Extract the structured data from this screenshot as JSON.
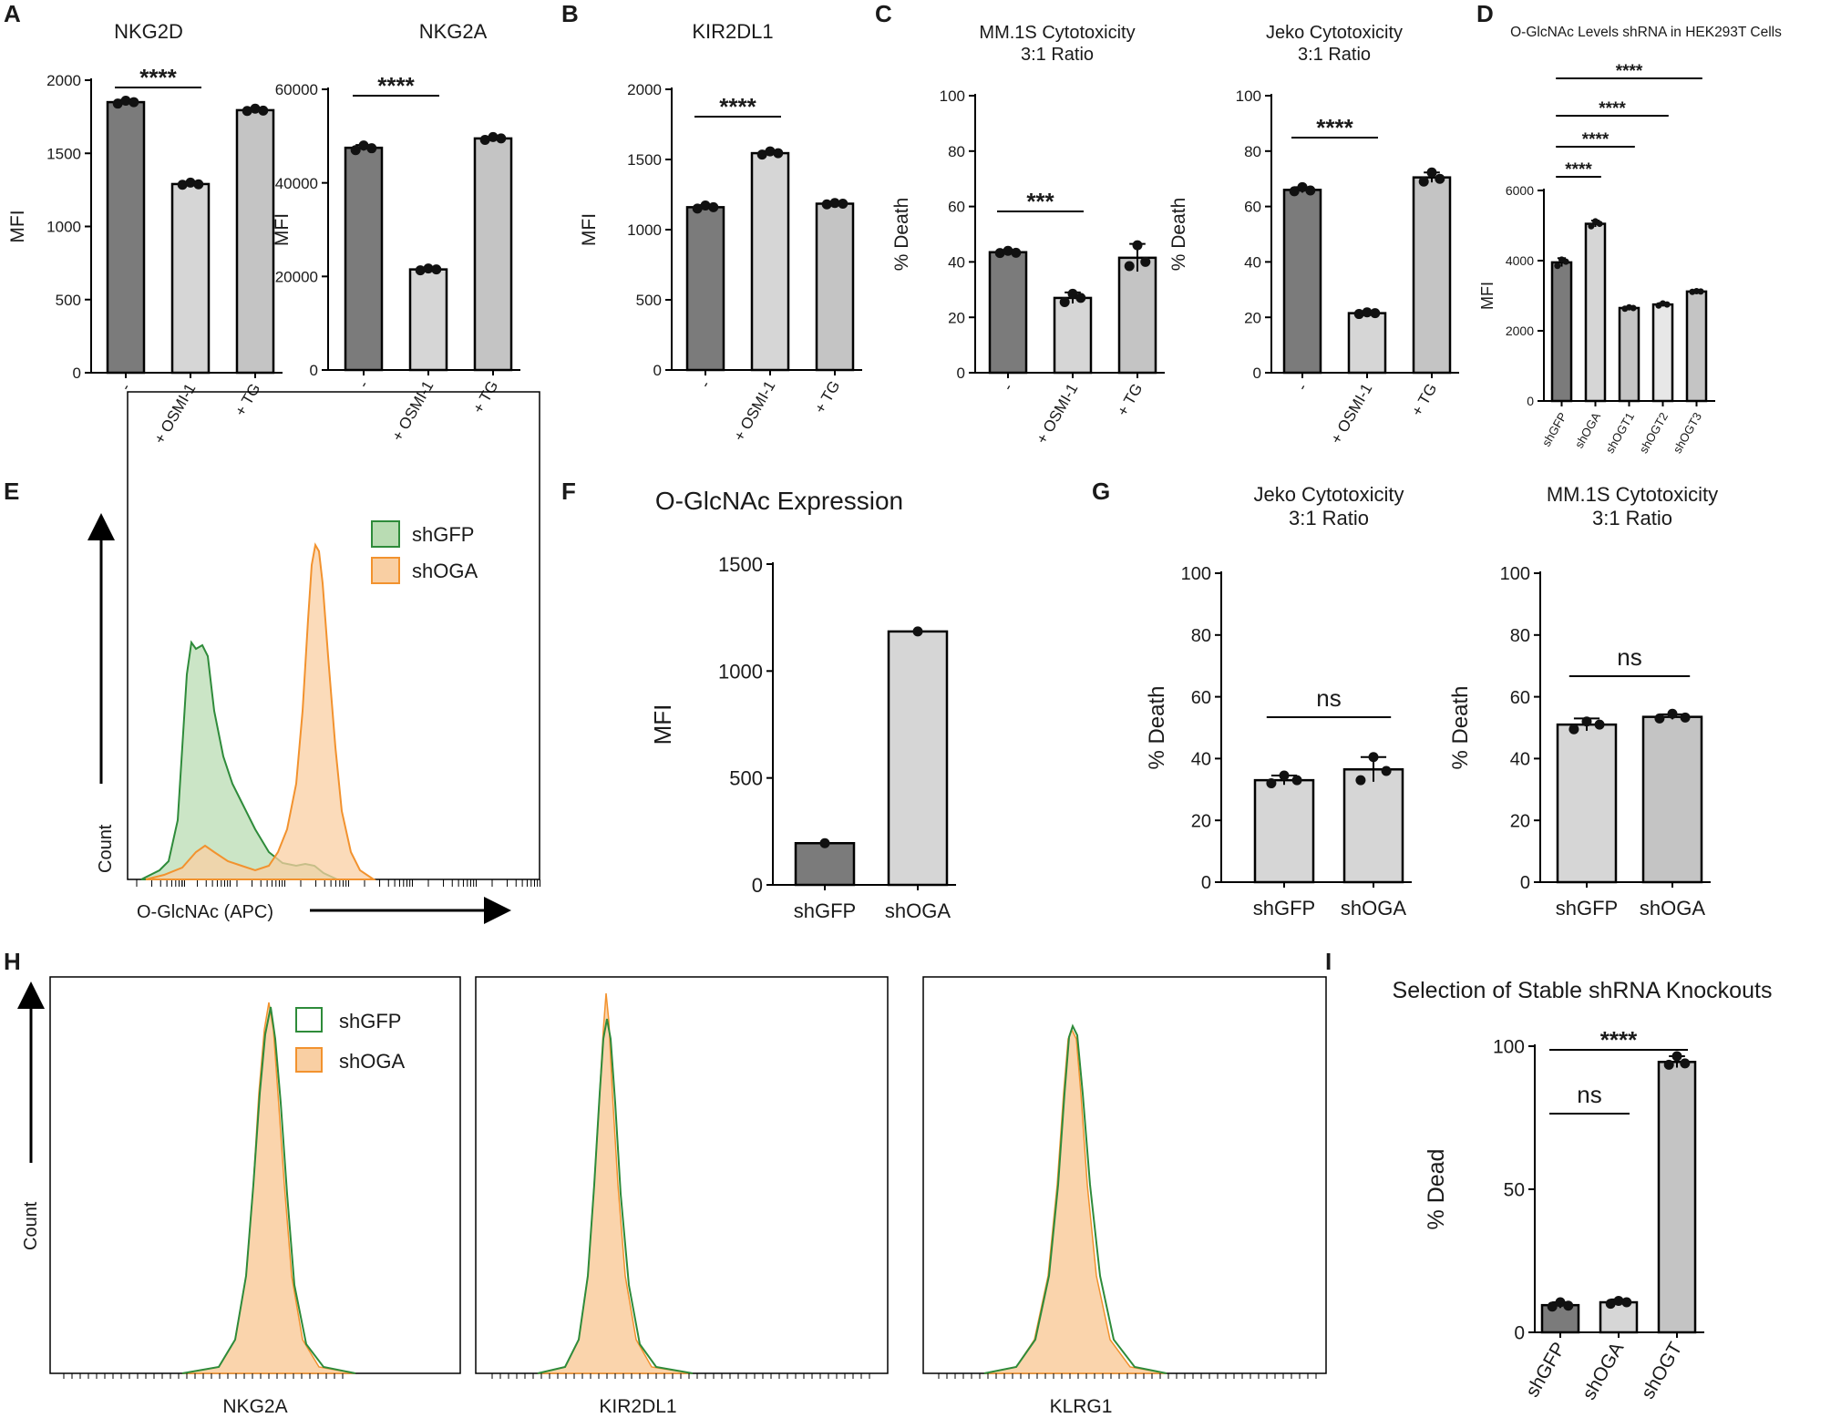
{
  "panel_letters": [
    "A",
    "B",
    "C",
    "D",
    "E",
    "F",
    "G",
    "H",
    "I"
  ],
  "colors": {
    "dark_bar": "#7b7b7b",
    "light_bar": "#d6d6d6",
    "mid_bar": "#c4c4c4",
    "lightest_bar": "#e7e7e7",
    "green": "#2e8b3a",
    "green_fill": "#b9dcb3",
    "orange": "#f2922e",
    "orange_fill": "#f9cfa3"
  },
  "chart_data": [
    {
      "id": "A1",
      "type": "bar",
      "title": "NKG2D",
      "ylabel": "MFI",
      "categories": [
        "-",
        "+ OSMI-1",
        "+ TG"
      ],
      "values": [
        1850,
        1290,
        1795
      ],
      "errors": [
        15,
        12,
        15
      ],
      "points": [
        [
          1840,
          1860,
          1850
        ],
        [
          1285,
          1300,
          1288
        ],
        [
          1790,
          1805,
          1792
        ]
      ],
      "ylim": [
        0,
        2000
      ],
      "yticks": [
        0,
        500,
        1000,
        1500,
        2000
      ],
      "significance": [
        {
          "from": 0,
          "to": 1,
          "label": "****"
        }
      ]
    },
    {
      "id": "A2",
      "type": "bar",
      "title": "NKG2A",
      "ylabel": "MFI",
      "categories": [
        "-",
        "+ OSMI-1",
        "+ TG"
      ],
      "values": [
        47500,
        21500,
        49500
      ],
      "errors": [
        600,
        300,
        300
      ],
      "points": [
        [
          47000,
          48000,
          47400
        ],
        [
          21300,
          21700,
          21500
        ],
        [
          49200,
          49800,
          49500
        ]
      ],
      "ylim": [
        0,
        60000
      ],
      "yticks": [
        0,
        20000,
        40000,
        60000
      ],
      "significance": [
        {
          "from": 0,
          "to": 1,
          "label": "****"
        }
      ]
    },
    {
      "id": "B",
      "type": "bar",
      "title": "KIR2DL1",
      "ylabel": "MFI",
      "categories": [
        "-",
        "+ OSMI-1",
        "+ TG"
      ],
      "values": [
        1160,
        1545,
        1185
      ],
      "errors": [
        15,
        15,
        8
      ],
      "points": [
        [
          1150,
          1172,
          1160
        ],
        [
          1535,
          1558,
          1545
        ],
        [
          1180,
          1190,
          1185
        ]
      ],
      "ylim": [
        0,
        2000
      ],
      "yticks": [
        0,
        500,
        1000,
        1500,
        2000
      ],
      "significance": [
        {
          "from": 0,
          "to": 1,
          "label": "****"
        }
      ]
    },
    {
      "id": "C1",
      "type": "bar",
      "title": "MM.1S Cytotoxicity\n3:1 Ratio",
      "ylabel": "% Death",
      "categories": [
        "-",
        "+ OSMI-1",
        "+ TG"
      ],
      "values": [
        43.5,
        27,
        41.5
      ],
      "errors": [
        0.8,
        2,
        5
      ],
      "points": [
        [
          43.2,
          44,
          43.3
        ],
        [
          25.5,
          28.5,
          27
        ],
        [
          38.5,
          46,
          40
        ]
      ],
      "ylim": [
        0,
        100
      ],
      "yticks": [
        0,
        20,
        40,
        60,
        80,
        100
      ],
      "significance": [
        {
          "from": 0,
          "to": 1,
          "label": "***"
        }
      ]
    },
    {
      "id": "C2",
      "type": "bar",
      "title": "Jeko Cytotoxicity\n3:1 Ratio",
      "ylabel": "% Death",
      "categories": [
        "-",
        "+ OSMI-1",
        "+ TG"
      ],
      "values": [
        66,
        21.5,
        70.5
      ],
      "errors": [
        1,
        0.5,
        1.8
      ],
      "points": [
        [
          65.5,
          67,
          65.8
        ],
        [
          21.2,
          21.8,
          21.5
        ],
        [
          69,
          72.3,
          70
        ]
      ],
      "ylim": [
        0,
        100
      ],
      "yticks": [
        0,
        20,
        40,
        60,
        80,
        100
      ],
      "significance": [
        {
          "from": 0,
          "to": 1,
          "label": "****"
        }
      ]
    },
    {
      "id": "D",
      "type": "bar",
      "title": "O-GlcNAc Levels shRNA in HEK293T Cells",
      "ylabel": "MFI",
      "categories": [
        "shGFP",
        "shOGA",
        "shOGT1",
        "shOGT2",
        "shOGT3"
      ],
      "values": [
        3950,
        5050,
        2650,
        2750,
        3120
      ],
      "errors": [
        120,
        90,
        30,
        40,
        20
      ],
      "points": [
        [
          3850,
          4030,
          3970
        ],
        [
          4980,
          5120,
          5050
        ],
        [
          2630,
          2670,
          2650
        ],
        [
          2720,
          2780,
          2750
        ],
        [
          3110,
          3130,
          3120
        ]
      ],
      "ylim": [
        0,
        6000
      ],
      "yticks": [
        0,
        2000,
        4000,
        6000
      ],
      "significance": [
        {
          "from": 0,
          "to": 1,
          "label": "****"
        },
        {
          "from": 0,
          "to": 2,
          "label": "****"
        },
        {
          "from": 0,
          "to": 3,
          "label": "****"
        },
        {
          "from": 0,
          "to": 4,
          "label": "****"
        }
      ]
    },
    {
      "id": "F",
      "type": "bar",
      "title": "O-GlcNAc Expression",
      "ylabel": "MFI",
      "categories": [
        "shGFP",
        "shOGA"
      ],
      "values": [
        195,
        1185
      ],
      "errors": [
        0,
        0
      ],
      "points": [
        [
          195
        ],
        [
          1185
        ]
      ],
      "ylim": [
        0,
        1500
      ],
      "yticks": [
        0,
        500,
        1000,
        1500
      ],
      "significance": []
    },
    {
      "id": "G1",
      "type": "bar",
      "title": "Jeko Cytotoxicity\n3:1 Ratio",
      "ylabel": "% Death",
      "categories": [
        "shGFP",
        "shOGA"
      ],
      "values": [
        33,
        36.5
      ],
      "errors": [
        1.5,
        4
      ],
      "points": [
        [
          32,
          34.5,
          33
        ],
        [
          33,
          40.5,
          36
        ]
      ],
      "ylim": [
        0,
        100
      ],
      "yticks": [
        0,
        20,
        40,
        60,
        80,
        100
      ],
      "significance": [
        {
          "from": 0,
          "to": 1,
          "label": "ns"
        }
      ]
    },
    {
      "id": "G2",
      "type": "bar",
      "title": "MM.1S Cytotoxicity\n3:1 Ratio",
      "ylabel": "% Death",
      "categories": [
        "shGFP",
        "shOGA"
      ],
      "values": [
        51,
        53.5
      ],
      "errors": [
        2,
        0.8
      ],
      "points": [
        [
          49.5,
          52,
          51
        ],
        [
          53,
          54.5,
          53.3
        ]
      ],
      "ylim": [
        0,
        100
      ],
      "yticks": [
        0,
        20,
        40,
        60,
        80,
        100
      ],
      "significance": [
        {
          "from": 0,
          "to": 1,
          "label": "ns"
        }
      ]
    },
    {
      "id": "I",
      "type": "bar",
      "title": "Selection of Stable shRNA Knockouts",
      "ylabel": "% Dead",
      "categories": [
        "shGFP",
        "shOGA",
        "shOGT"
      ],
      "values": [
        9.5,
        10.5,
        94.5
      ],
      "errors": [
        1,
        1,
        2
      ],
      "points": [
        [
          9,
          10.5,
          9.3
        ],
        [
          10,
          11,
          10.5
        ],
        [
          93.5,
          96.5,
          94
        ]
      ],
      "ylim": [
        0,
        100
      ],
      "yticks": [
        0,
        50,
        100
      ],
      "significance": [
        {
          "from": 0,
          "to": 1,
          "label": "ns"
        },
        {
          "from": 0,
          "to": 2,
          "label": "****"
        }
      ]
    }
  ],
  "flow": {
    "E": {
      "xlabel": "O-GlcNAc (APC)",
      "ylabel": "Count",
      "legend": [
        "shGFP",
        "shOGA"
      ]
    },
    "H": {
      "ylabel": "Count",
      "legend": [
        "shGFP",
        "shOGA"
      ],
      "plots": [
        "NKG2A",
        "KIR2DL1",
        "KLRG1"
      ]
    }
  }
}
